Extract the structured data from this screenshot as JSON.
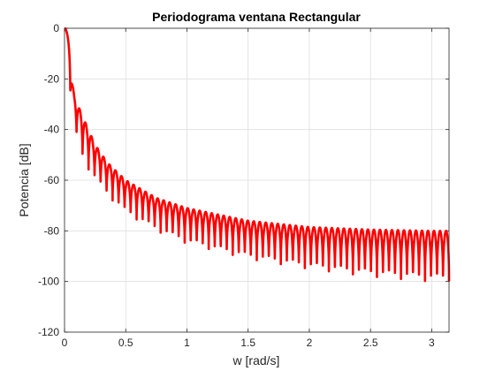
{
  "chart_data": {
    "type": "line",
    "title": "Periodograma ventana Rectangular",
    "xlabel": "w [rad/s]",
    "ylabel": "Potencia [dB]",
    "xlim": [
      0,
      3.14159
    ],
    "ylim": [
      -120,
      0
    ],
    "xticks": [
      0,
      0.5,
      1,
      1.5,
      2,
      2.5,
      3
    ],
    "xtick_labels": [
      "0",
      "0.5",
      "1",
      "1.5",
      "2",
      "2.5",
      "3"
    ],
    "yticks": [
      0,
      -20,
      -40,
      -60,
      -80,
      -100,
      -120
    ],
    "ytick_labels": [
      "0",
      "-20",
      "-40",
      "-60",
      "-80",
      "-100",
      "-120"
    ],
    "grid": true,
    "series": [
      {
        "color": "#ff0000",
        "envelope": {
          "w": [
            0,
            0.08,
            0.15,
            0.25,
            0.35,
            0.5,
            0.75,
            1.0,
            1.5,
            2.0,
            2.5,
            3.0,
            3.14159
          ],
          "upper": [
            0,
            -27,
            -35,
            -46,
            -53,
            -60,
            -67,
            -71,
            -76,
            -78.5,
            -79.5,
            -80,
            -80
          ],
          "lower": [
            0,
            -40,
            -52,
            -60,
            -66,
            -73,
            -80,
            -85,
            -91,
            -95,
            -98,
            -100,
            -100
          ]
        },
        "lobes_in_range": 64
      }
    ]
  }
}
